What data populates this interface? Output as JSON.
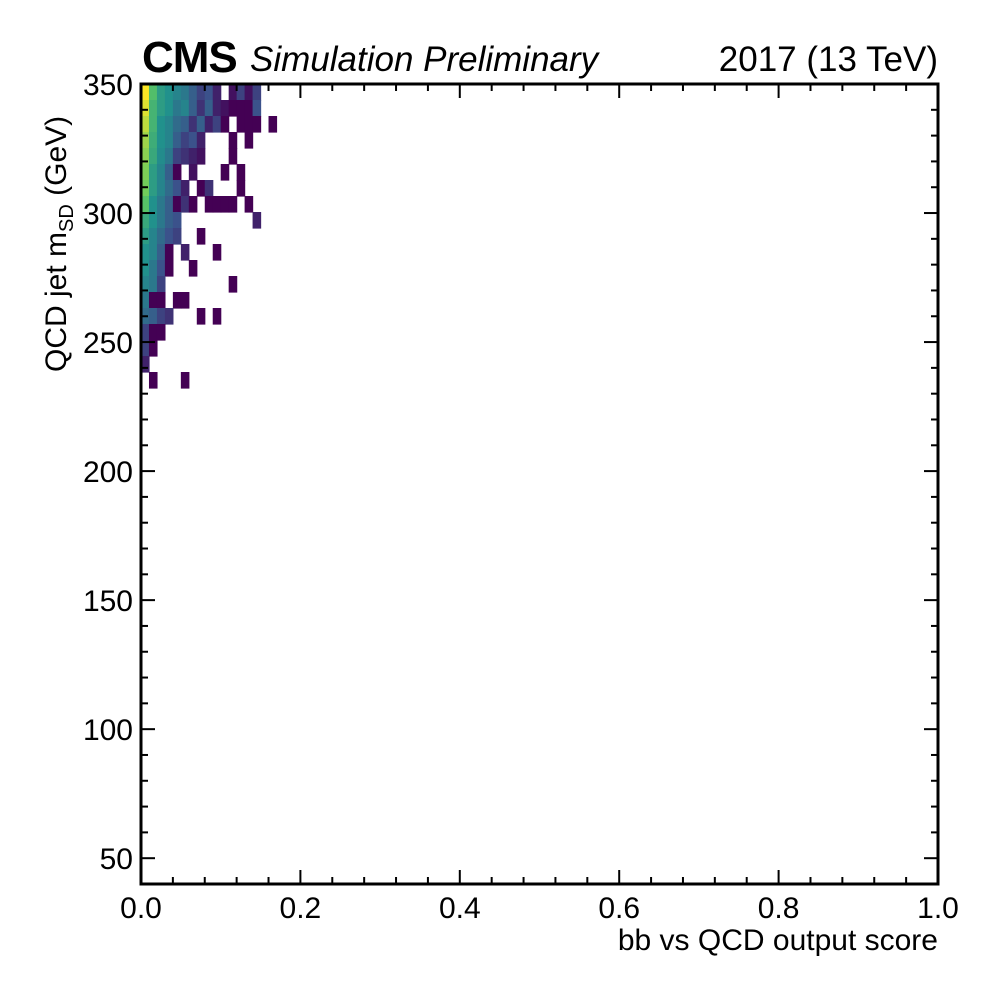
{
  "header": {
    "experiment": "CMS",
    "status": "Simulation Preliminary",
    "run_info": "2017 (13 TeV)"
  },
  "chart_data": {
    "type": "heatmap",
    "title": "",
    "xlabel": "bb vs QCD output score",
    "ylabel_main": "QCD jet m",
    "ylabel_sub": "SD",
    "ylabel_unit": " (GeV)",
    "xlim": [
      0.0,
      1.0
    ],
    "ylim": [
      40,
      350
    ],
    "x_ticks": [
      "0.0",
      "0.2",
      "0.4",
      "0.6",
      "0.8",
      "1.0"
    ],
    "y_ticks": [
      "50",
      "100",
      "150",
      "200",
      "250",
      "300",
      "350"
    ],
    "colormap": "viridis",
    "bin_width_x": 0.01,
    "bin_width_y": 6.2,
    "cells": [
      [
        0.0,
        343.8,
        1.0
      ],
      [
        0.01,
        343.8,
        0.7
      ],
      [
        0.02,
        343.8,
        0.55
      ],
      [
        0.03,
        343.8,
        0.5
      ],
      [
        0.04,
        343.8,
        0.45
      ],
      [
        0.05,
        343.8,
        0.4
      ],
      [
        0.06,
        343.8,
        0.3
      ],
      [
        0.07,
        343.8,
        0.2
      ],
      [
        0.08,
        343.8,
        0.25
      ],
      [
        0.09,
        343.8,
        0.1
      ],
      [
        0.11,
        343.8,
        0.05
      ],
      [
        0.12,
        343.8,
        0.2
      ],
      [
        0.13,
        343.8,
        0.05
      ],
      [
        0.14,
        343.8,
        0.2
      ],
      [
        0.0,
        337.6,
        0.95
      ],
      [
        0.01,
        337.6,
        0.65
      ],
      [
        0.02,
        337.6,
        0.55
      ],
      [
        0.03,
        337.6,
        0.5
      ],
      [
        0.04,
        337.6,
        0.4
      ],
      [
        0.05,
        337.6,
        0.45
      ],
      [
        0.06,
        337.6,
        0.3
      ],
      [
        0.07,
        337.6,
        0.15
      ],
      [
        0.08,
        337.6,
        0.3
      ],
      [
        0.09,
        337.6,
        0.1
      ],
      [
        0.1,
        337.6,
        0.05
      ],
      [
        0.11,
        337.6,
        0.0
      ],
      [
        0.12,
        337.6,
        0.0
      ],
      [
        0.13,
        337.6,
        0.0
      ],
      [
        0.14,
        337.6,
        0.25
      ],
      [
        0.0,
        331.4,
        0.9
      ],
      [
        0.01,
        331.4,
        0.65
      ],
      [
        0.02,
        331.4,
        0.5
      ],
      [
        0.03,
        331.4,
        0.45
      ],
      [
        0.04,
        331.4,
        0.35
      ],
      [
        0.05,
        331.4,
        0.3
      ],
      [
        0.06,
        331.4,
        0.15
      ],
      [
        0.07,
        331.4,
        0.3
      ],
      [
        0.08,
        331.4,
        0.1
      ],
      [
        0.09,
        331.4,
        0.2
      ],
      [
        0.1,
        331.4,
        0.0
      ],
      [
        0.12,
        331.4,
        0.0
      ],
      [
        0.13,
        331.4,
        0.0
      ],
      [
        0.14,
        331.4,
        0.0
      ],
      [
        0.16,
        331.4,
        0.0
      ],
      [
        0.0,
        325.2,
        0.85
      ],
      [
        0.01,
        325.2,
        0.62
      ],
      [
        0.02,
        325.2,
        0.5
      ],
      [
        0.03,
        325.2,
        0.45
      ],
      [
        0.04,
        325.2,
        0.3
      ],
      [
        0.05,
        325.2,
        0.2
      ],
      [
        0.06,
        325.2,
        0.25
      ],
      [
        0.07,
        325.2,
        0.1
      ],
      [
        0.11,
        325.2,
        0.0
      ],
      [
        0.13,
        325.2,
        0.0
      ],
      [
        0.0,
        319.0,
        0.82
      ],
      [
        0.01,
        319.0,
        0.6
      ],
      [
        0.02,
        319.0,
        0.48
      ],
      [
        0.03,
        319.0,
        0.4
      ],
      [
        0.04,
        319.0,
        0.2
      ],
      [
        0.05,
        319.0,
        0.15
      ],
      [
        0.06,
        319.0,
        0.1
      ],
      [
        0.07,
        319.0,
        0.05
      ],
      [
        0.11,
        319.0,
        0.0
      ],
      [
        0.0,
        312.8,
        0.8
      ],
      [
        0.01,
        312.8,
        0.55
      ],
      [
        0.02,
        312.8,
        0.45
      ],
      [
        0.03,
        312.8,
        0.3
      ],
      [
        0.04,
        312.8,
        0.0
      ],
      [
        0.06,
        312.8,
        0.05
      ],
      [
        0.1,
        312.8,
        0.0
      ],
      [
        0.12,
        312.8,
        0.0
      ],
      [
        0.0,
        306.6,
        0.78
      ],
      [
        0.01,
        306.6,
        0.55
      ],
      [
        0.02,
        306.6,
        0.45
      ],
      [
        0.03,
        306.6,
        0.35
      ],
      [
        0.04,
        306.6,
        0.25
      ],
      [
        0.05,
        306.6,
        0.1
      ],
      [
        0.07,
        306.6,
        0.0
      ],
      [
        0.08,
        306.6,
        0.15
      ],
      [
        0.12,
        306.6,
        0.0
      ],
      [
        0.0,
        300.4,
        0.72
      ],
      [
        0.01,
        300.4,
        0.5
      ],
      [
        0.02,
        300.4,
        0.4
      ],
      [
        0.03,
        300.4,
        0.3
      ],
      [
        0.04,
        300.4,
        0.0
      ],
      [
        0.05,
        300.4,
        0.15
      ],
      [
        0.06,
        300.4,
        0.0
      ],
      [
        0.08,
        300.4,
        0.0
      ],
      [
        0.09,
        300.4,
        0.0
      ],
      [
        0.1,
        300.4,
        0.0
      ],
      [
        0.11,
        300.4,
        0.0
      ],
      [
        0.13,
        300.4,
        0.0
      ],
      [
        0.0,
        294.2,
        0.6
      ],
      [
        0.01,
        294.2,
        0.5
      ],
      [
        0.02,
        294.2,
        0.4
      ],
      [
        0.03,
        294.2,
        0.3
      ],
      [
        0.04,
        294.2,
        0.25
      ],
      [
        0.14,
        294.2,
        0.1
      ],
      [
        0.0,
        288.0,
        0.55
      ],
      [
        0.01,
        288.0,
        0.45
      ],
      [
        0.02,
        288.0,
        0.35
      ],
      [
        0.03,
        288.0,
        0.25
      ],
      [
        0.04,
        288.0,
        0.2
      ],
      [
        0.07,
        288.0,
        0.0
      ],
      [
        0.0,
        281.8,
        0.5
      ],
      [
        0.01,
        281.8,
        0.45
      ],
      [
        0.02,
        281.8,
        0.3
      ],
      [
        0.03,
        281.8,
        0.0
      ],
      [
        0.05,
        281.8,
        0.1
      ],
      [
        0.09,
        281.8,
        0.0
      ],
      [
        0.0,
        275.6,
        0.5
      ],
      [
        0.01,
        275.6,
        0.4
      ],
      [
        0.02,
        275.6,
        0.25
      ],
      [
        0.03,
        275.6,
        0.0
      ],
      [
        0.06,
        275.6,
        0.0
      ],
      [
        0.0,
        269.4,
        0.45
      ],
      [
        0.01,
        269.4,
        0.4
      ],
      [
        0.02,
        269.4,
        0.2
      ],
      [
        0.11,
        269.4,
        0.0
      ],
      [
        0.0,
        263.2,
        0.4
      ],
      [
        0.01,
        263.2,
        0.0
      ],
      [
        0.02,
        263.2,
        0.0
      ],
      [
        0.04,
        263.2,
        0.0
      ],
      [
        0.05,
        263.2,
        0.0
      ],
      [
        0.0,
        257.0,
        0.35
      ],
      [
        0.01,
        257.0,
        0.3
      ],
      [
        0.02,
        257.0,
        0.2
      ],
      [
        0.03,
        257.0,
        0.15
      ],
      [
        0.07,
        257.0,
        0.0
      ],
      [
        0.09,
        257.0,
        0.0
      ],
      [
        0.0,
        250.8,
        0.2
      ],
      [
        0.01,
        250.8,
        0.0
      ],
      [
        0.02,
        250.8,
        0.0
      ],
      [
        0.0,
        244.6,
        0.2
      ],
      [
        0.01,
        244.6,
        0.0
      ],
      [
        0.0,
        238.4,
        0.1
      ],
      [
        0.01,
        232.2,
        0.0
      ],
      [
        0.05,
        232.2,
        0.0
      ]
    ]
  }
}
